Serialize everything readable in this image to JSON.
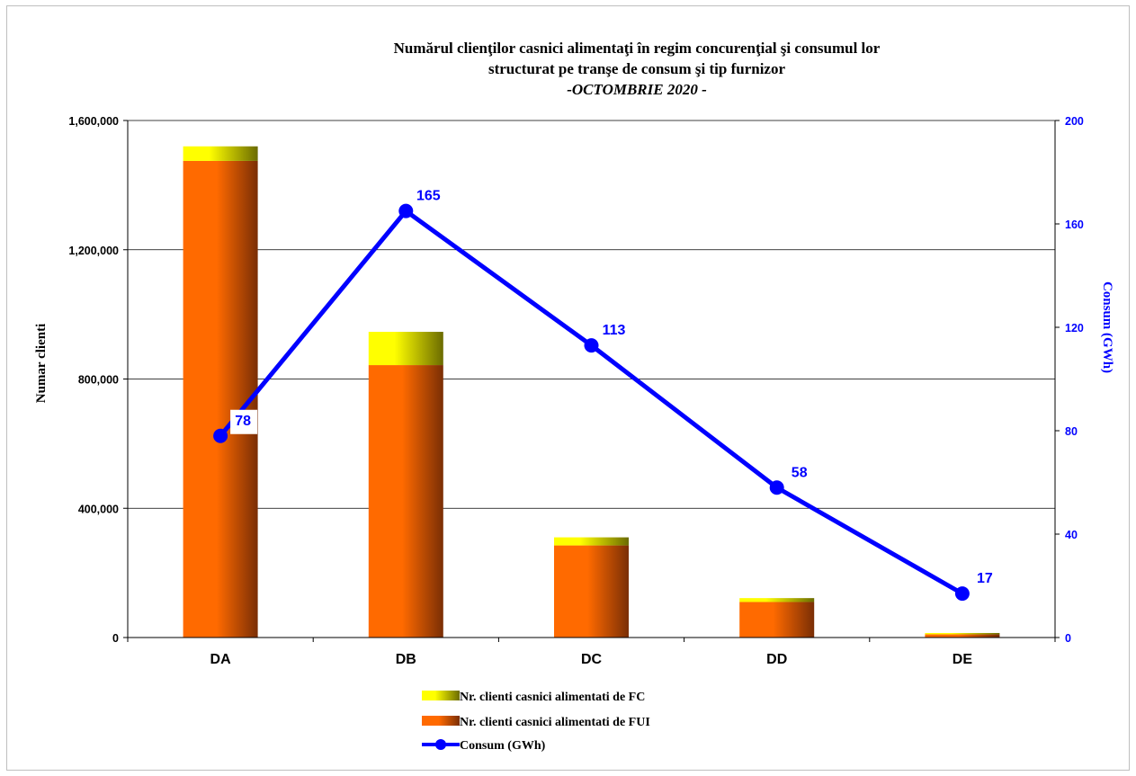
{
  "chart_data": {
    "type": "bar",
    "title_lines": [
      "Numărul clienţilor casnici alimentaţi în regim concurenţial şi consumul lor",
      "structurat pe tranşe de consum şi tip furnizor",
      "-OCTOMBRIE 2020 -"
    ],
    "categories": [
      "DA",
      "DB",
      "DC",
      "DD",
      "DE"
    ],
    "series": [
      {
        "name": "Nr. clienti casnici alimentati de FUI",
        "kind": "stacked-bar",
        "axis": "left",
        "values": [
          1475000,
          843000,
          285000,
          110000,
          10000
        ]
      },
      {
        "name": "Nr. clienti casnici alimentati de FC",
        "kind": "stacked-bar",
        "axis": "left",
        "values": [
          45000,
          103000,
          25000,
          12000,
          4000
        ]
      },
      {
        "name": "Consum (GWh)",
        "kind": "line",
        "axis": "right",
        "values": [
          78,
          165,
          113,
          58,
          17
        ],
        "labels": [
          "78",
          "165",
          "113",
          "58",
          "17"
        ]
      }
    ],
    "ylabel": "Numar clienti",
    "y2label": "Consum (GWh)",
    "ylim": [
      0,
      1600000
    ],
    "y2lim": [
      0,
      200
    ],
    "yticks": [
      "0",
      "400,000",
      "800,000",
      "1,200,000",
      "1,600,000"
    ],
    "y2ticks": [
      "0",
      "40",
      "80",
      "120",
      "160",
      "200"
    ],
    "grid": "horizontal",
    "legend_position": "bottom",
    "colors": {
      "fui_light": "#ff6a00",
      "fui_dark": "#7a2e05",
      "fc_light": "#ffff00",
      "fc_dark": "#6b6b00",
      "line": "#0000ff",
      "right_axis_text": "#0000ff"
    }
  }
}
